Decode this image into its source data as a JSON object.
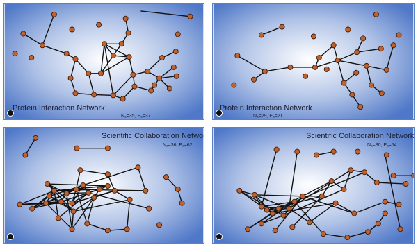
{
  "panels": [
    {
      "title": "Protein Interaction Network",
      "stats": "Nₐ=35, Eₐ=37"
    },
    {
      "title": "Protein Interaction Network",
      "stats": "Nₐ=29, Eₐ=21"
    },
    {
      "title": "Scientific Collaboration Network",
      "stats": "Nₐ=36, Eₐ=62"
    },
    {
      "title": "Scientific Collaboration Network",
      "stats": "Nₐ=30, Eₐ=54"
    }
  ],
  "colors": {
    "node": "#c0622d",
    "edge": "#111111",
    "background_center": "#ffffff",
    "background_edge": "#4f78c8"
  },
  "icons": {
    "corner_badge": "gear-icon"
  }
}
